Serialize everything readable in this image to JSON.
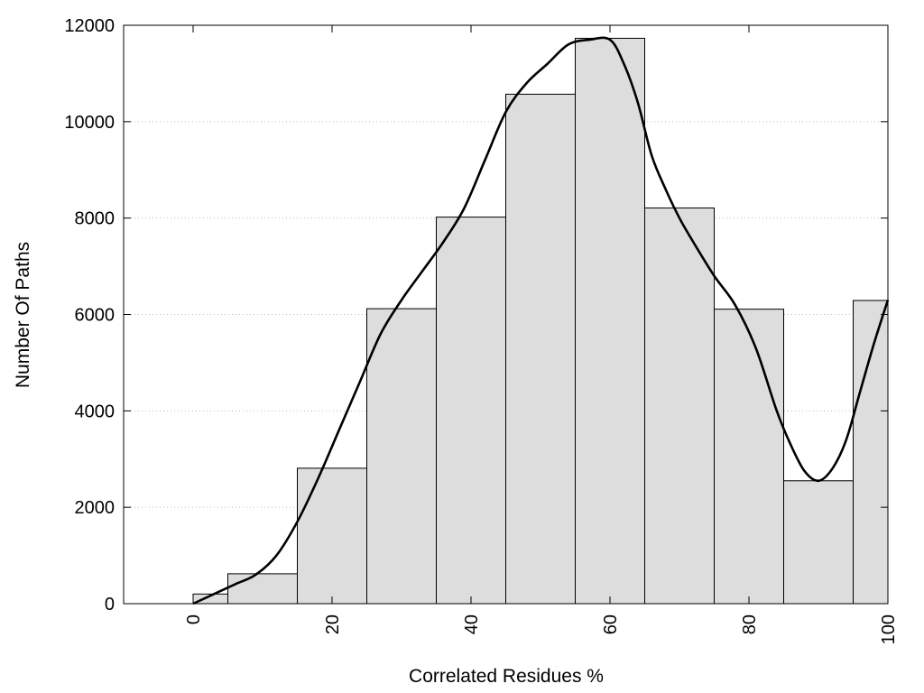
{
  "chart_data": {
    "type": "bar",
    "title": "",
    "xlabel": "Correlated Residues %",
    "ylabel": "Number Of Paths",
    "xlim": [
      -10,
      100
    ],
    "ylim": [
      0,
      12000
    ],
    "x_ticks": [
      "0",
      "20",
      "40",
      "60",
      "80",
      "100"
    ],
    "x_tick_values": [
      0,
      20,
      40,
      60,
      80,
      100
    ],
    "y_ticks": [
      "0",
      "2000",
      "4000",
      "6000",
      "8000",
      "10000",
      "12000"
    ],
    "y_tick_values": [
      0,
      2000,
      4000,
      6000,
      8000,
      10000,
      12000
    ],
    "grid": "horizontal dotted",
    "legend": "none",
    "bar_color": "#dddddd",
    "bars": [
      {
        "x0": 0,
        "x1": 5,
        "value": 200
      },
      {
        "x0": 5,
        "x1": 15,
        "value": 620
      },
      {
        "x0": 15,
        "x1": 25,
        "value": 2810
      },
      {
        "x0": 25,
        "x1": 35,
        "value": 6120
      },
      {
        "x0": 35,
        "x1": 45,
        "value": 8020
      },
      {
        "x0": 45,
        "x1": 55,
        "value": 10570
      },
      {
        "x0": 55,
        "x1": 65,
        "value": 11730
      },
      {
        "x0": 65,
        "x1": 75,
        "value": 8210
      },
      {
        "x0": 75,
        "x1": 85,
        "value": 6110
      },
      {
        "x0": 85,
        "x1": 95,
        "value": 2550
      },
      {
        "x0": 95,
        "x1": 100,
        "value": 6290
      }
    ],
    "curve": {
      "x": [
        0,
        3,
        6,
        9,
        12,
        15,
        18,
        21,
        24,
        27,
        30,
        33,
        36,
        39,
        42,
        45,
        48,
        51,
        54,
        57,
        60,
        62,
        64,
        66,
        68,
        70,
        72,
        75,
        78,
        81,
        84,
        86,
        88,
        90,
        92,
        94,
        96,
        98,
        100
      ],
      "y": [
        0,
        200,
        400,
        600,
        1000,
        1700,
        2600,
        3600,
        4600,
        5600,
        6300,
        6900,
        7500,
        8200,
        9200,
        10200,
        10800,
        11200,
        11600,
        11700,
        11700,
        11200,
        10400,
        9300,
        8600,
        8000,
        7500,
        6800,
        6200,
        5300,
        4000,
        3300,
        2750,
        2550,
        2800,
        3400,
        4400,
        5400,
        6300
      ]
    }
  }
}
